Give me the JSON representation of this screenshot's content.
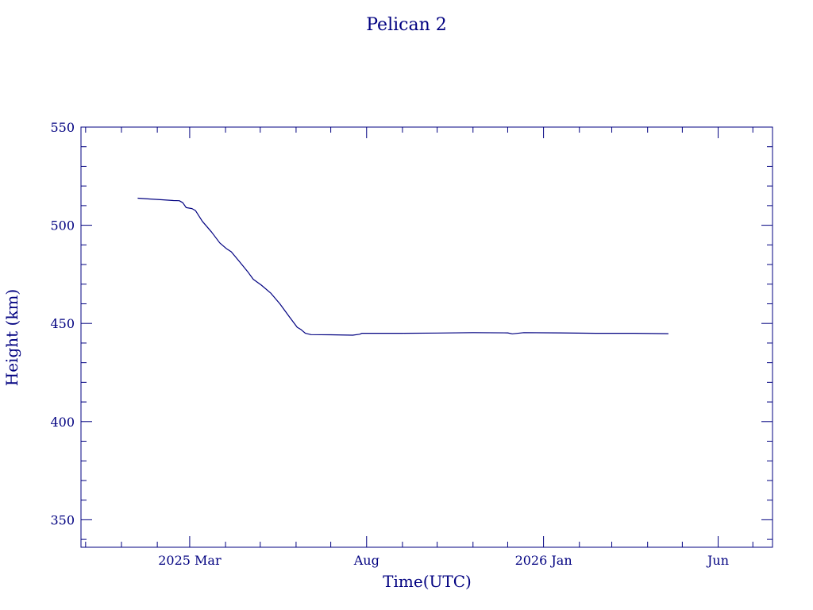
{
  "colors": {
    "foreground": "#000080",
    "background": "#ffffff"
  },
  "chart_data": {
    "type": "line",
    "title": "Pelican 2",
    "xlabel": "Time(UTC)",
    "ylabel": "Height (km)",
    "x_axis": {
      "type": "date",
      "range": [
        "2024-11-27",
        "2026-07-18"
      ],
      "ticks": [
        {
          "date": "2025-03-01",
          "label": "2025 Mar"
        },
        {
          "date": "2025-08-01",
          "label": "Aug"
        },
        {
          "date": "2026-01-01",
          "label": "2026 Jan"
        },
        {
          "date": "2026-06-01",
          "label": "Jun"
        }
      ],
      "minor_tick_dates": [
        "2024-12-01",
        "2025-01-01",
        "2025-02-01",
        "2025-04-01",
        "2025-05-01",
        "2025-06-01",
        "2025-07-01",
        "2025-09-01",
        "2025-10-01",
        "2025-11-01",
        "2025-12-01",
        "2026-02-01",
        "2026-03-01",
        "2026-04-01",
        "2026-05-01",
        "2026-07-01"
      ]
    },
    "y_axis": {
      "range": [
        336,
        550
      ],
      "ticks": [
        350,
        400,
        450,
        500,
        550
      ],
      "minor_step": 10
    },
    "grid": false,
    "series": [
      {
        "points": [
          [
            "2025-01-15",
            513.8
          ],
          [
            "2025-01-25",
            513.4
          ],
          [
            "2025-02-05",
            513.0
          ],
          [
            "2025-02-15",
            512.6
          ],
          [
            "2025-02-20",
            512.5
          ],
          [
            "2025-02-23",
            511.5
          ],
          [
            "2025-02-26",
            509.0
          ],
          [
            "2025-03-03",
            508.5
          ],
          [
            "2025-03-06",
            507.5
          ],
          [
            "2025-03-12",
            502.0
          ],
          [
            "2025-03-20",
            496.5
          ],
          [
            "2025-03-27",
            491.0
          ],
          [
            "2025-04-02",
            488.0
          ],
          [
            "2025-04-06",
            486.5
          ],
          [
            "2025-04-13",
            481.5
          ],
          [
            "2025-04-20",
            476.5
          ],
          [
            "2025-04-25",
            472.5
          ],
          [
            "2025-05-02",
            469.5
          ],
          [
            "2025-05-10",
            465.5
          ],
          [
            "2025-05-18",
            460.0
          ],
          [
            "2025-05-26",
            453.5
          ],
          [
            "2025-06-02",
            448.0
          ],
          [
            "2025-06-05",
            447.0
          ],
          [
            "2025-06-09",
            445.0
          ],
          [
            "2025-06-14",
            444.3
          ],
          [
            "2025-07-01",
            444.2
          ],
          [
            "2025-07-20",
            444.0
          ],
          [
            "2025-07-26",
            444.5
          ],
          [
            "2025-07-28",
            445.0
          ],
          [
            "2025-08-10",
            445.0
          ],
          [
            "2025-09-01",
            445.0
          ],
          [
            "2025-10-01",
            445.1
          ],
          [
            "2025-11-01",
            445.3
          ],
          [
            "2025-12-01",
            445.2
          ],
          [
            "2025-12-05",
            444.7
          ],
          [
            "2025-12-15",
            445.3
          ],
          [
            "2026-01-15",
            445.2
          ],
          [
            "2026-02-15",
            445.0
          ],
          [
            "2026-03-20",
            445.0
          ],
          [
            "2026-04-19",
            444.8
          ]
        ]
      }
    ]
  }
}
